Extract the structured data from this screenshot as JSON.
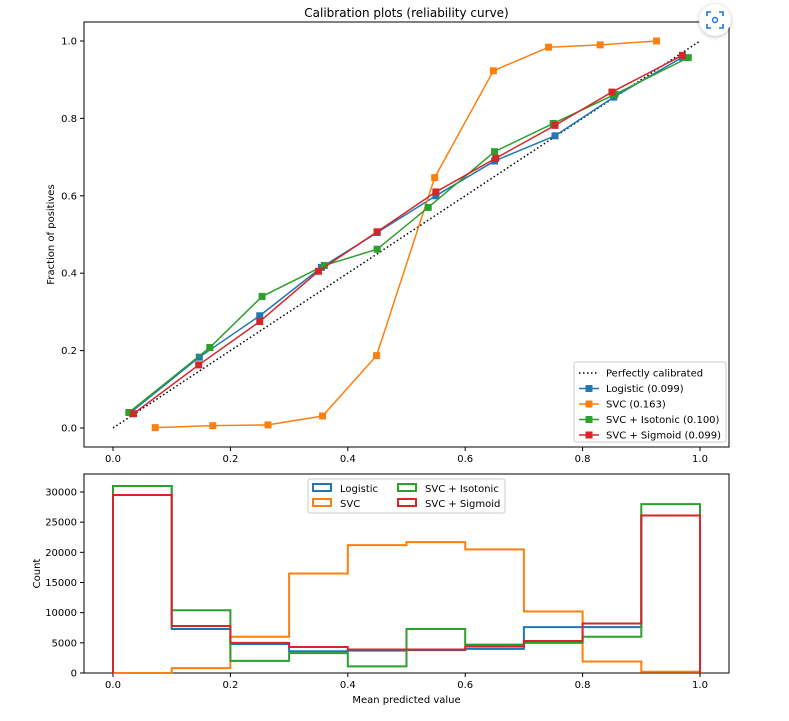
{
  "chart_data": [
    {
      "type": "line",
      "title": "Calibration plots  (reliability curve)",
      "xlabel": "",
      "ylabel": "Fraction of positives",
      "xlim": [
        -0.05,
        1.05
      ],
      "ylim": [
        -0.05,
        1.05
      ],
      "xticks": [
        "0.0",
        "0.2",
        "0.4",
        "0.6",
        "0.8",
        "1.0"
      ],
      "yticks": [
        "0.0",
        "0.2",
        "0.4",
        "0.6",
        "0.8",
        "1.0"
      ],
      "legend_position": "lower-right",
      "reference": {
        "name": "Perfectly calibrated",
        "x": [
          0,
          1
        ],
        "y": [
          0,
          1
        ],
        "color": "#000000",
        "style": "dotted"
      },
      "series": [
        {
          "name": "Logistic (0.099)",
          "color": "#1f77b4",
          "x": [
            0.03,
            0.147,
            0.25,
            0.355,
            0.45,
            0.55,
            0.65,
            0.753,
            0.853,
            0.97
          ],
          "y": [
            0.04,
            0.183,
            0.29,
            0.415,
            0.505,
            0.6,
            0.69,
            0.755,
            0.855,
            0.958
          ]
        },
        {
          "name": "SVC (0.163)",
          "color": "#ff7f0e",
          "x": [
            0.072,
            0.17,
            0.264,
            0.357,
            0.449,
            0.548,
            0.648,
            0.742,
            0.83,
            0.926
          ],
          "y": [
            0.001,
            0.006,
            0.008,
            0.031,
            0.187,
            0.647,
            0.923,
            0.984,
            0.99,
            1.0
          ]
        },
        {
          "name": "SVC + Isotonic (0.100)",
          "color": "#2ca02c",
          "x": [
            0.027,
            0.165,
            0.254,
            0.36,
            0.45,
            0.537,
            0.65,
            0.75,
            0.855,
            0.98
          ],
          "y": [
            0.04,
            0.208,
            0.34,
            0.42,
            0.462,
            0.57,
            0.714,
            0.787,
            0.862,
            0.957
          ]
        },
        {
          "name": "SVC + Sigmoid (0.099)",
          "color": "#d62728",
          "x": [
            0.035,
            0.146,
            0.25,
            0.35,
            0.45,
            0.55,
            0.652,
            0.753,
            0.85,
            0.97
          ],
          "y": [
            0.037,
            0.163,
            0.275,
            0.405,
            0.507,
            0.61,
            0.697,
            0.782,
            0.868,
            0.963
          ]
        }
      ]
    },
    {
      "type": "histogram",
      "xlabel": "Mean predicted value",
      "ylabel": "Count",
      "xlim": [
        -0.05,
        1.05
      ],
      "ylim": [
        0,
        32500
      ],
      "xticks": [
        "0.0",
        "0.2",
        "0.4",
        "0.6",
        "0.8",
        "1.0"
      ],
      "yticks": [
        "0",
        "5000",
        "10000",
        "15000",
        "20000",
        "25000",
        "30000"
      ],
      "ytick_values": [
        0,
        5000,
        10000,
        15000,
        20000,
        25000,
        30000
      ],
      "legend_position": "upper-center",
      "bin_edges": [
        0,
        0.1,
        0.2,
        0.3,
        0.4,
        0.5,
        0.6,
        0.7,
        0.8,
        0.9,
        1.0
      ],
      "series": [
        {
          "name": "Logistic",
          "color": "#1f77b4",
          "counts": [
            31000,
            7300,
            4800,
            3600,
            3700,
            3800,
            4000,
            7600,
            7600,
            26100
          ]
        },
        {
          "name": "SVC",
          "color": "#ff7f0e",
          "counts": [
            0,
            800,
            6000,
            16500,
            21200,
            21700,
            20500,
            10200,
            1900,
            200
          ]
        },
        {
          "name": "SVC + Isotonic",
          "color": "#2ca02c",
          "counts": [
            31000,
            10400,
            2000,
            3300,
            1100,
            7300,
            4700,
            5000,
            6000,
            28000
          ]
        },
        {
          "name": "SVC + Sigmoid",
          "color": "#d62728",
          "counts": [
            29500,
            7800,
            5000,
            4300,
            3900,
            3900,
            4400,
            5300,
            8200,
            26100
          ]
        }
      ]
    }
  ],
  "overlay": {
    "icon": "screenshot-scan-icon",
    "color": "#1a73e8"
  }
}
